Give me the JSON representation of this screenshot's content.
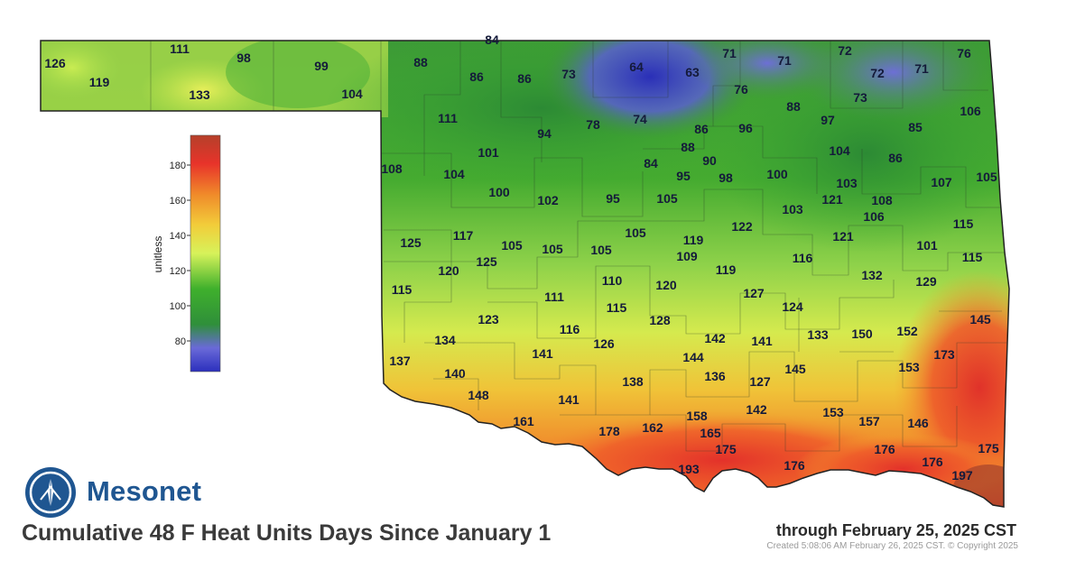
{
  "map": {
    "title": "Cumulative 48 F Heat Units Days Since January 1",
    "through": "through February 25, 2025 CST",
    "created": "Created 5:08:06 AM February 26, 2025 CST. © Copyright 2025",
    "brand": "Mesonet",
    "legend": {
      "unit_label": "unitless",
      "ticks": [
        "180",
        "160",
        "140",
        "120",
        "100",
        "80"
      ],
      "colors": [
        "#2b2fbd",
        "#6a6ad8",
        "#2f8f3a",
        "#3fb02c",
        "#d7f25a",
        "#f2cd3a",
        "#f08a2a",
        "#e8332a",
        "#b5402a"
      ]
    },
    "values": [
      "126",
      "119",
      "111",
      "133",
      "98",
      "99",
      "104",
      "84",
      "88",
      "86",
      "86",
      "73",
      "64",
      "63",
      "71",
      "76",
      "71",
      "72",
      "72",
      "71",
      "76",
      "88",
      "73",
      "111",
      "94",
      "78",
      "74",
      "86",
      "96",
      "97",
      "85",
      "106",
      "101",
      "108",
      "104",
      "84",
      "88",
      "90",
      "95",
      "98",
      "100",
      "104",
      "103",
      "86",
      "107",
      "105",
      "100",
      "102",
      "95",
      "105",
      "121",
      "108",
      "106",
      "103",
      "115",
      "125",
      "117",
      "105",
      "105",
      "105",
      "105",
      "119",
      "122",
      "121",
      "101",
      "115",
      "120",
      "125",
      "109",
      "119",
      "116",
      "132",
      "129",
      "115",
      "111",
      "110",
      "120",
      "127",
      "124",
      "123",
      "115",
      "128",
      "134",
      "116",
      "126",
      "142",
      "141",
      "133",
      "150",
      "152",
      "145",
      "137",
      "141",
      "144",
      "173",
      "140",
      "136",
      "145",
      "153",
      "148",
      "138",
      "127",
      "141",
      "142",
      "153",
      "157",
      "146",
      "161",
      "178",
      "162",
      "158",
      "165",
      "175",
      "176",
      "176",
      "175",
      "193",
      "176",
      "197"
    ]
  }
}
